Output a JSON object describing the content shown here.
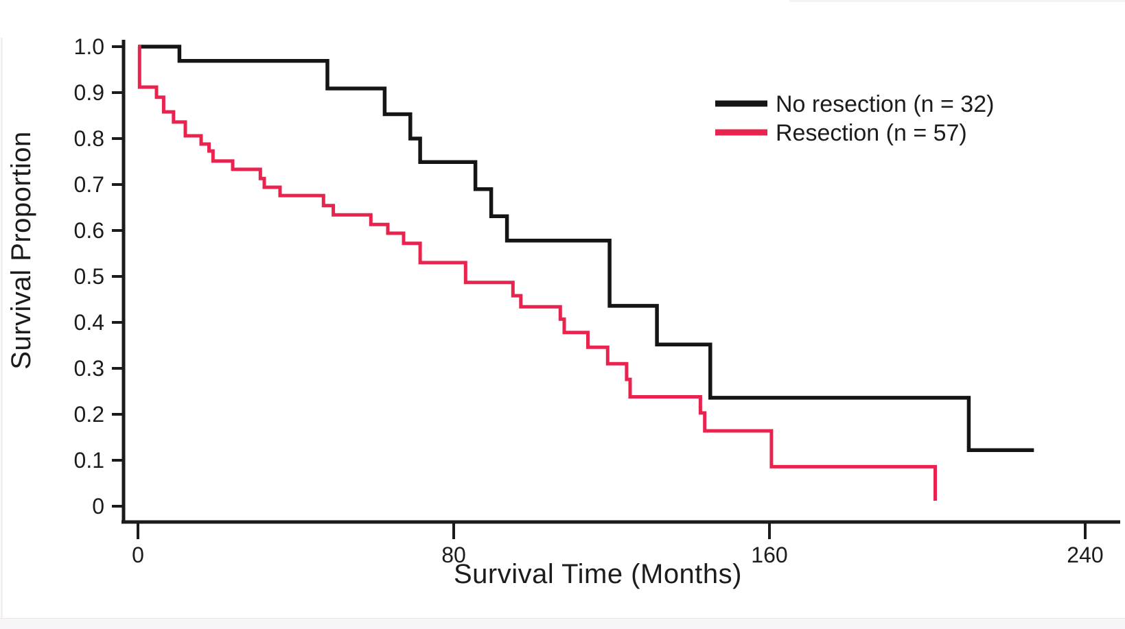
{
  "page": {
    "background": "#ffffff",
    "left_edge_strip_color": "#f2eef1",
    "top_edge_strip_color": "#f4f4f6",
    "bottom_strip_color": "#f7f5f8",
    "bottom_strip_border_color": "#eae7ea"
  },
  "chart_data": {
    "type": "line",
    "subtype": "kaplan_meier_step",
    "title": "",
    "xlabel": "Survival Time (Months)",
    "ylabel": "Survival Proportion",
    "xlim": [
      0,
      240
    ],
    "ylim": [
      0,
      1.0
    ],
    "grid": false,
    "legend_position": "upper-right-inside",
    "axis_color": "#1b1b1b",
    "x_ticks": [
      {
        "value": 0,
        "label": "0"
      },
      {
        "value": 80,
        "label": "80"
      },
      {
        "value": 160,
        "label": "160"
      },
      {
        "value": 240,
        "label": "240"
      }
    ],
    "y_ticks": [
      {
        "value": 1.0,
        "label": "1.0"
      },
      {
        "value": 0.9,
        "label": "0.9"
      },
      {
        "value": 0.8,
        "label": "0.8"
      },
      {
        "value": 0.7,
        "label": "0.7"
      },
      {
        "value": 0.6,
        "label": "0.6"
      },
      {
        "value": 0.5,
        "label": "0.5"
      },
      {
        "value": 0.4,
        "label": "0.4"
      },
      {
        "value": 0.3,
        "label": "0.3"
      },
      {
        "value": 0.2,
        "label": "0.2"
      },
      {
        "value": 0.1,
        "label": "0.1"
      },
      {
        "value": 0,
        "label": "0"
      }
    ],
    "series": [
      {
        "name": "No resection (n = 32)",
        "n": 32,
        "color": "#151515",
        "end_x": 227,
        "steps": [
          [
            0,
            1.0
          ],
          [
            10.5,
            0.969
          ],
          [
            48,
            0.909
          ],
          [
            62.5,
            0.853
          ],
          [
            69,
            0.8
          ],
          [
            71.5,
            0.749
          ],
          [
            85.5,
            0.69
          ],
          [
            89.5,
            0.631
          ],
          [
            93.5,
            0.578
          ],
          [
            119.5,
            0.436
          ],
          [
            131.5,
            0.352
          ],
          [
            145,
            0.236
          ],
          [
            210.5,
            0.122
          ]
        ]
      },
      {
        "name": "Resection (n = 57)",
        "n": 57,
        "color": "#e8234e",
        "end_x": 202,
        "steps": [
          [
            0,
            1.0
          ],
          [
            0.4,
            0.912
          ],
          [
            4.7,
            0.89
          ],
          [
            6.5,
            0.858
          ],
          [
            9,
            0.836
          ],
          [
            12,
            0.806
          ],
          [
            16,
            0.788
          ],
          [
            18,
            0.773
          ],
          [
            19,
            0.751
          ],
          [
            24,
            0.733
          ],
          [
            31,
            0.713
          ],
          [
            32,
            0.694
          ],
          [
            36,
            0.676
          ],
          [
            47,
            0.654
          ],
          [
            49.5,
            0.634
          ],
          [
            59,
            0.613
          ],
          [
            63.3,
            0.594
          ],
          [
            67.3,
            0.572
          ],
          [
            71.5,
            0.53
          ],
          [
            83,
            0.487
          ],
          [
            95,
            0.458
          ],
          [
            97,
            0.434
          ],
          [
            107,
            0.407
          ],
          [
            108,
            0.378
          ],
          [
            114,
            0.346
          ],
          [
            119,
            0.31
          ],
          [
            123.8,
            0.276
          ],
          [
            124.7,
            0.238
          ],
          [
            142.5,
            0.203
          ],
          [
            143.6,
            0.164
          ],
          [
            160.5,
            0.086
          ],
          [
            202,
            0.012
          ]
        ]
      }
    ]
  }
}
